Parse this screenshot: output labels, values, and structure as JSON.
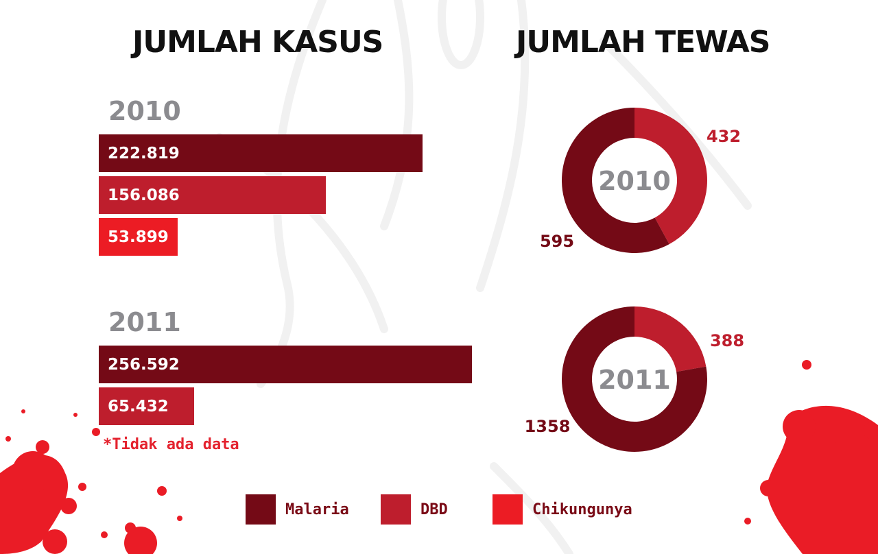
{
  "colors": {
    "malaria": "#740a16",
    "dbd": "#be1e2d",
    "chikungunya": "#ec1c24",
    "year_text": "#8b8b8f"
  },
  "titles": {
    "cases": "JUMLAH KASUS",
    "deaths": "JUMLAH TEWAS"
  },
  "note": "*Tidak ada data",
  "legend": [
    {
      "label": "Malaria",
      "color": "#740a16"
    },
    {
      "label": "DBD",
      "color": "#be1e2d"
    },
    {
      "label": "Chikungunya",
      "color": "#ec1c24"
    }
  ],
  "chart_data": [
    {
      "type": "bar",
      "title": "JUMLAH KASUS",
      "orientation": "horizontal",
      "groups": [
        {
          "year": "2010",
          "bars": [
            {
              "series": "Malaria",
              "value": 222819,
              "label": "222.819"
            },
            {
              "series": "DBD",
              "value": 156086,
              "label": "156.086"
            },
            {
              "series": "Chikungunya",
              "value": 53899,
              "label": "53.899"
            }
          ]
        },
        {
          "year": "2011",
          "bars": [
            {
              "series": "Malaria",
              "value": 256592,
              "label": "256.592"
            },
            {
              "series": "DBD",
              "value": 65432,
              "label": "65.432"
            }
          ]
        }
      ]
    },
    {
      "type": "pie",
      "title": "JUMLAH TEWAS",
      "donuts": [
        {
          "year": "2010",
          "slices": [
            {
              "series": "DBD",
              "value": 432,
              "label": "432"
            },
            {
              "series": "Malaria",
              "value": 595,
              "label": "595"
            }
          ]
        },
        {
          "year": "2011",
          "slices": [
            {
              "series": "DBD",
              "value": 388,
              "label": "388"
            },
            {
              "series": "Malaria",
              "value": 1358,
              "label": "1358"
            }
          ]
        }
      ]
    }
  ]
}
